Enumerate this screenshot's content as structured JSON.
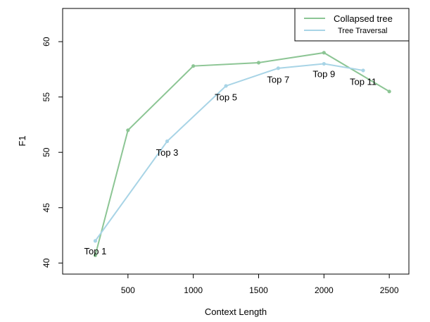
{
  "chart_data": {
    "type": "line",
    "xlabel": "Context Length",
    "ylabel": "F1",
    "xlim": [
      0,
      2650
    ],
    "ylim": [
      39,
      63
    ],
    "xticks": [
      500,
      1000,
      1500,
      2000,
      2500
    ],
    "yticks": [
      40,
      45,
      50,
      55,
      60
    ],
    "grid": false,
    "legend_position": "top-right",
    "series": [
      {
        "name": "Collapsed tree",
        "color": "#8cc594",
        "points": [
          [
            250,
            40.7
          ],
          [
            500,
            52
          ],
          [
            1000,
            57.8
          ],
          [
            1500,
            58.1
          ],
          [
            2000,
            59
          ],
          [
            2500,
            55.5
          ]
        ]
      },
      {
        "name": "Tree Traversal",
        "color": "#a8d4e6",
        "points": [
          [
            250,
            42
          ],
          [
            800,
            51
          ],
          [
            1250,
            56
          ],
          [
            1650,
            57.6
          ],
          [
            2000,
            58
          ],
          [
            2300,
            57.4
          ]
        ]
      }
    ],
    "annotations": [
      {
        "text": "Top 1",
        "x": 250,
        "y": 41.1
      },
      {
        "text": "Top 3",
        "x": 800,
        "y": 50
      },
      {
        "text": "Top 5",
        "x": 1250,
        "y": 55
      },
      {
        "text": "Top 7",
        "x": 1650,
        "y": 56.6
      },
      {
        "text": "Top 9",
        "x": 2000,
        "y": 57.1
      },
      {
        "text": "Top 11",
        "x": 2300,
        "y": 56.4
      }
    ]
  }
}
